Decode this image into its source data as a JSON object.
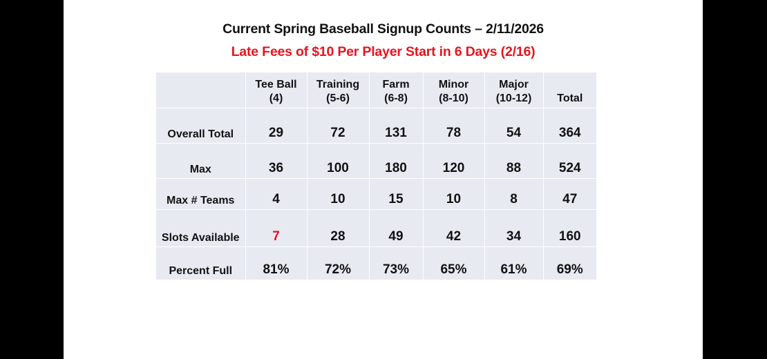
{
  "slide": {
    "title": "Current Spring Baseball Signup Counts – 2/11/2026",
    "subtitle": "Late Fees of $10 Per Player Start in 6 Days (2/16)",
    "colors": {
      "title": "#111111",
      "subtitle": "#E8141C",
      "table_bg": "#E8EAF2",
      "alert": "#E8141C",
      "letterbox": "#000000"
    }
  },
  "table": {
    "columns": [
      {
        "line1": "",
        "line2": ""
      },
      {
        "line1": "Tee Ball",
        "line2": "(4)"
      },
      {
        "line1": "Training",
        "line2": "(5-6)"
      },
      {
        "line1": "Farm",
        "line2": "(6-8)"
      },
      {
        "line1": "Minor",
        "line2": "(8-10)"
      },
      {
        "line1": "Major",
        "line2": "(10-12)"
      },
      {
        "line1": "",
        "line2": "Total"
      }
    ],
    "rows": [
      {
        "label": "Overall Total",
        "values": [
          "29",
          "72",
          "131",
          "78",
          "54",
          "364"
        ]
      },
      {
        "label": "Max",
        "values": [
          "36",
          "100",
          "180",
          "120",
          "88",
          "524"
        ]
      },
      {
        "label": "Max # Teams",
        "values": [
          "4",
          "10",
          "15",
          "10",
          "8",
          "47"
        ]
      },
      {
        "label": "Slots Available",
        "values": [
          "7",
          "28",
          "49",
          "42",
          "34",
          "160"
        ],
        "highlight_index": 0
      },
      {
        "label": "Percent Full",
        "values": [
          "81%",
          "72%",
          "73%",
          "65%",
          "61%",
          "69%"
        ]
      }
    ]
  }
}
